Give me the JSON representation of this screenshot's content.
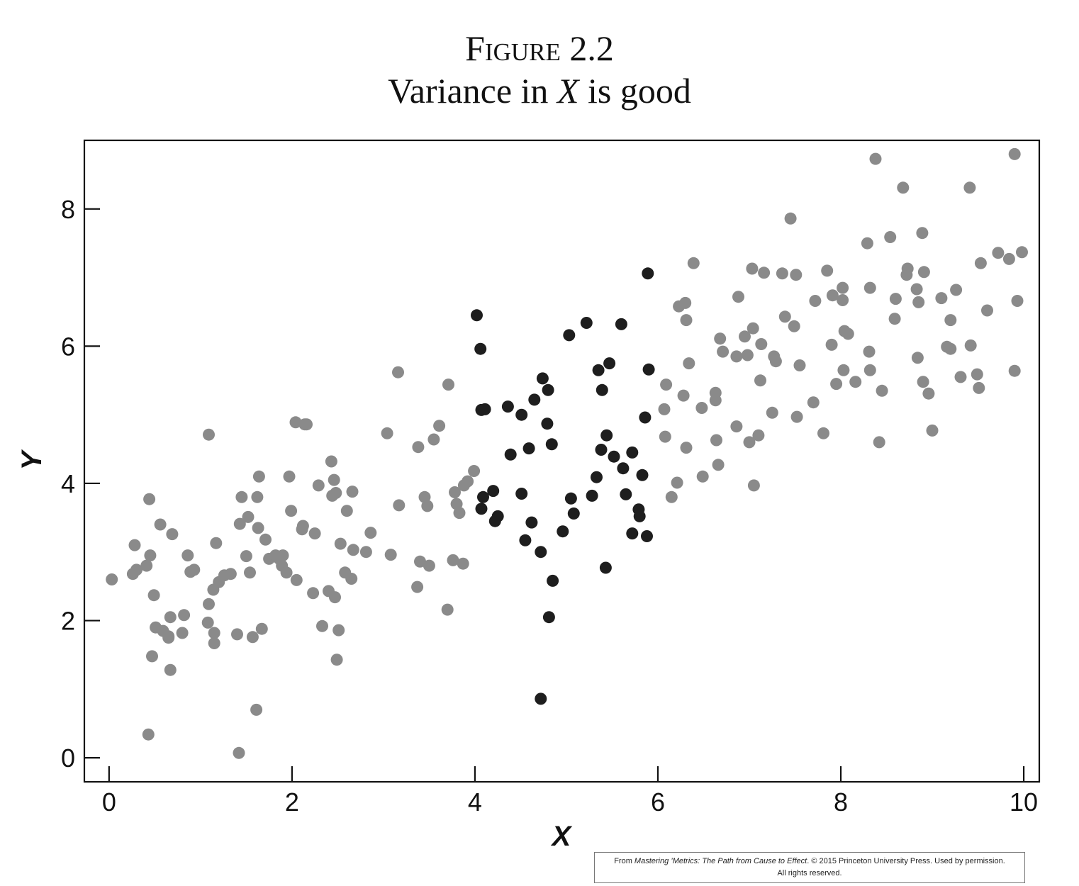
{
  "figure": {
    "label": "Figure 2.2",
    "subtitle_pre": "Variance in ",
    "subtitle_var": "X",
    "subtitle_post": " is good"
  },
  "credit": {
    "prefix": "From ",
    "book": "Mastering ’Metrics: The Path from Cause to Effect",
    "suffix": ". © 2015 Princeton University Press. Used by permission.",
    "line2": "All rights reserved."
  },
  "chart_data": {
    "type": "scatter",
    "title": "Figure 2.2 Variance in X is good",
    "xlabel": "X",
    "ylabel": "Y",
    "xlim": [
      -0.27,
      10.17
    ],
    "ylim": [
      -0.35,
      9.0
    ],
    "xticks": [
      0,
      2,
      4,
      6,
      8,
      10
    ],
    "yticks": [
      0,
      2,
      4,
      6,
      8
    ],
    "grid": false,
    "colors": {
      "light": "#8a8a8a",
      "dark": "#1e1e1e",
      "axis": "#111111"
    },
    "series": [
      {
        "color": "#8a8a8a",
        "points": [
          [
            0.03,
            2.6
          ],
          [
            0.26,
            2.68
          ],
          [
            0.28,
            3.1
          ],
          [
            0.3,
            2.74
          ],
          [
            0.41,
            2.8
          ],
          [
            0.44,
            3.77
          ],
          [
            0.45,
            2.95
          ],
          [
            0.47,
            1.48
          ],
          [
            0.49,
            2.37
          ],
          [
            0.51,
            1.9
          ],
          [
            0.43,
            0.34
          ],
          [
            0.56,
            3.4
          ],
          [
            0.59,
            1.85
          ],
          [
            0.65,
            1.77
          ],
          [
            0.67,
            2.05
          ],
          [
            0.67,
            1.28
          ],
          [
            0.69,
            3.26
          ],
          [
            0.8,
            1.82
          ],
          [
            0.82,
            2.08
          ],
          [
            0.86,
            2.95
          ],
          [
            0.89,
            2.71
          ],
          [
            0.93,
            2.74
          ],
          [
            1.09,
            4.71
          ],
          [
            1.08,
            1.97
          ],
          [
            1.09,
            2.24
          ],
          [
            1.14,
            2.45
          ],
          [
            1.15,
            1.82
          ],
          [
            1.15,
            1.67
          ],
          [
            1.17,
            3.13
          ],
          [
            1.2,
            2.56
          ],
          [
            1.26,
            2.66
          ],
          [
            1.33,
            2.68
          ],
          [
            1.4,
            1.8
          ],
          [
            1.43,
            3.41
          ],
          [
            1.45,
            3.8
          ],
          [
            1.5,
            2.94
          ],
          [
            1.52,
            3.51
          ],
          [
            1.54,
            2.7
          ],
          [
            1.57,
            1.76
          ],
          [
            1.62,
            3.8
          ],
          [
            1.63,
            3.35
          ],
          [
            1.64,
            4.1
          ],
          [
            1.67,
            1.88
          ],
          [
            1.71,
            3.18
          ],
          [
            1.75,
            2.9
          ],
          [
            1.82,
            2.95
          ],
          [
            1.86,
            2.9
          ],
          [
            1.89,
            2.8
          ],
          [
            1.9,
            2.95
          ],
          [
            1.94,
            2.7
          ],
          [
            1.97,
            4.1
          ],
          [
            1.99,
            3.6
          ],
          [
            2.04,
            4.89
          ],
          [
            2.05,
            2.59
          ],
          [
            2.11,
            3.33
          ],
          [
            2.12,
            3.38
          ],
          [
            2.14,
            4.86
          ],
          [
            2.16,
            4.86
          ],
          [
            2.23,
            2.4
          ],
          [
            2.25,
            3.27
          ],
          [
            2.29,
            3.97
          ],
          [
            2.33,
            1.92
          ],
          [
            2.4,
            2.43
          ],
          [
            2.43,
            4.32
          ],
          [
            2.44,
            3.82
          ],
          [
            2.46,
            4.05
          ],
          [
            2.47,
            2.34
          ],
          [
            2.48,
            3.86
          ],
          [
            2.49,
            1.43
          ],
          [
            2.51,
            1.86
          ],
          [
            2.53,
            3.12
          ],
          [
            2.58,
            2.7
          ],
          [
            2.6,
            3.6
          ],
          [
            2.65,
            2.61
          ],
          [
            2.66,
            3.88
          ],
          [
            2.67,
            3.03
          ],
          [
            2.81,
            3.0
          ],
          [
            2.86,
            3.28
          ],
          [
            3.04,
            4.73
          ],
          [
            3.08,
            2.96
          ],
          [
            3.16,
            5.62
          ],
          [
            3.17,
            3.68
          ],
          [
            3.37,
            2.49
          ],
          [
            3.38,
            4.53
          ],
          [
            3.4,
            2.86
          ],
          [
            3.45,
            3.8
          ],
          [
            3.48,
            3.67
          ],
          [
            3.5,
            2.8
          ],
          [
            3.55,
            4.64
          ],
          [
            3.61,
            4.84
          ],
          [
            3.7,
            2.16
          ],
          [
            3.71,
            5.44
          ],
          [
            3.76,
            2.88
          ],
          [
            3.78,
            3.87
          ],
          [
            3.8,
            3.7
          ],
          [
            3.83,
            3.57
          ],
          [
            3.87,
            2.83
          ],
          [
            3.88,
            3.97
          ],
          [
            3.92,
            4.03
          ],
          [
            3.99,
            4.18
          ],
          [
            0.65,
            1.75
          ],
          [
            1.61,
            0.7
          ],
          [
            1.42,
            0.07
          ],
          [
            6.09,
            5.44
          ],
          [
            6.07,
            5.08
          ],
          [
            6.08,
            4.68
          ],
          [
            6.15,
            3.8
          ],
          [
            6.21,
            4.01
          ],
          [
            6.23,
            6.58
          ],
          [
            6.28,
            5.28
          ],
          [
            6.3,
            6.63
          ],
          [
            6.31,
            6.38
          ],
          [
            6.31,
            4.52
          ],
          [
            6.34,
            5.75
          ],
          [
            6.39,
            7.21
          ],
          [
            6.48,
            5.1
          ],
          [
            6.49,
            4.1
          ],
          [
            6.63,
            5.32
          ],
          [
            6.63,
            5.21
          ],
          [
            6.64,
            4.63
          ],
          [
            6.66,
            4.27
          ],
          [
            6.68,
            6.11
          ],
          [
            6.71,
            5.92
          ],
          [
            6.86,
            5.85
          ],
          [
            6.86,
            4.83
          ],
          [
            6.88,
            6.72
          ],
          [
            6.95,
            6.14
          ],
          [
            6.98,
            5.87
          ],
          [
            7.0,
            4.6
          ],
          [
            7.03,
            7.13
          ],
          [
            7.04,
            6.26
          ],
          [
            7.05,
            3.97
          ],
          [
            7.1,
            4.7
          ],
          [
            7.12,
            5.5
          ],
          [
            7.13,
            6.03
          ],
          [
            7.16,
            7.07
          ],
          [
            7.25,
            5.03
          ],
          [
            7.27,
            5.85
          ],
          [
            7.29,
            5.78
          ],
          [
            7.36,
            7.06
          ],
          [
            7.39,
            6.43
          ],
          [
            7.45,
            7.86
          ],
          [
            7.49,
            6.29
          ],
          [
            7.51,
            7.04
          ],
          [
            7.52,
            4.97
          ],
          [
            7.55,
            5.72
          ],
          [
            7.7,
            5.18
          ],
          [
            7.72,
            6.66
          ],
          [
            7.81,
            4.73
          ],
          [
            7.85,
            7.1
          ],
          [
            7.9,
            6.02
          ],
          [
            7.91,
            6.74
          ],
          [
            7.95,
            5.45
          ],
          [
            8.02,
            6.67
          ],
          [
            8.02,
            6.85
          ],
          [
            8.03,
            5.65
          ],
          [
            8.04,
            6.22
          ],
          [
            8.08,
            6.18
          ],
          [
            8.16,
            5.48
          ],
          [
            8.29,
            7.5
          ],
          [
            8.31,
            5.92
          ],
          [
            8.32,
            5.65
          ],
          [
            8.32,
            6.85
          ],
          [
            8.38,
            8.73
          ],
          [
            8.42,
            4.6
          ],
          [
            8.45,
            5.35
          ],
          [
            8.54,
            7.59
          ],
          [
            8.59,
            6.4
          ],
          [
            8.6,
            6.69
          ],
          [
            8.68,
            8.31
          ],
          [
            8.72,
            7.04
          ],
          [
            8.73,
            7.13
          ],
          [
            8.83,
            6.83
          ],
          [
            8.84,
            5.83
          ],
          [
            8.85,
            6.64
          ],
          [
            8.89,
            7.65
          ],
          [
            8.9,
            5.48
          ],
          [
            8.91,
            7.08
          ],
          [
            8.96,
            5.31
          ],
          [
            9.0,
            4.77
          ],
          [
            9.1,
            6.7
          ],
          [
            9.16,
            5.99
          ],
          [
            9.2,
            5.96
          ],
          [
            9.2,
            6.38
          ],
          [
            9.26,
            6.82
          ],
          [
            9.31,
            5.55
          ],
          [
            9.41,
            8.31
          ],
          [
            9.42,
            6.01
          ],
          [
            9.49,
            5.59
          ],
          [
            9.51,
            5.39
          ],
          [
            9.53,
            7.21
          ],
          [
            9.6,
            6.52
          ],
          [
            9.72,
            7.36
          ],
          [
            9.84,
            7.27
          ],
          [
            9.9,
            8.8
          ],
          [
            9.9,
            5.64
          ],
          [
            9.93,
            6.66
          ],
          [
            9.98,
            7.37
          ]
        ]
      },
      {
        "color": "#1e1e1e",
        "points": [
          [
            4.02,
            6.45
          ],
          [
            4.06,
            5.96
          ],
          [
            4.07,
            3.63
          ],
          [
            4.07,
            5.07
          ],
          [
            4.09,
            3.8
          ],
          [
            4.11,
            5.08
          ],
          [
            4.2,
            3.89
          ],
          [
            4.22,
            3.45
          ],
          [
            4.25,
            3.52
          ],
          [
            4.36,
            5.12
          ],
          [
            4.39,
            4.42
          ],
          [
            4.51,
            3.85
          ],
          [
            4.51,
            5.0
          ],
          [
            4.55,
            3.17
          ],
          [
            4.59,
            4.51
          ],
          [
            4.62,
            3.43
          ],
          [
            4.65,
            5.22
          ],
          [
            4.72,
            3.0
          ],
          [
            4.72,
            0.86
          ],
          [
            4.74,
            5.53
          ],
          [
            4.79,
            4.87
          ],
          [
            4.8,
            5.36
          ],
          [
            4.81,
            2.05
          ],
          [
            4.84,
            4.57
          ],
          [
            4.85,
            2.58
          ],
          [
            4.96,
            3.3
          ],
          [
            5.03,
            6.16
          ],
          [
            5.05,
            3.78
          ],
          [
            5.08,
            3.56
          ],
          [
            5.22,
            6.34
          ],
          [
            5.28,
            3.82
          ],
          [
            5.33,
            4.09
          ],
          [
            5.35,
            5.65
          ],
          [
            5.38,
            4.49
          ],
          [
            5.39,
            5.36
          ],
          [
            5.43,
            2.77
          ],
          [
            5.44,
            4.7
          ],
          [
            5.47,
            5.75
          ],
          [
            5.52,
            4.39
          ],
          [
            5.6,
            6.32
          ],
          [
            5.62,
            4.22
          ],
          [
            5.65,
            3.84
          ],
          [
            5.72,
            4.45
          ],
          [
            5.72,
            3.27
          ],
          [
            5.79,
            3.62
          ],
          [
            5.8,
            3.52
          ],
          [
            5.83,
            4.12
          ],
          [
            5.86,
            4.96
          ],
          [
            5.88,
            3.23
          ],
          [
            5.89,
            7.06
          ],
          [
            5.9,
            5.66
          ]
        ]
      }
    ]
  }
}
